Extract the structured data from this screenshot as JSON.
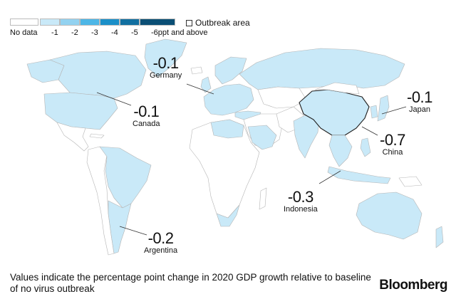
{
  "legend": {
    "no_data_label": "No data",
    "ramp": [
      {
        "label": "-1",
        "color": "#c9e9f8"
      },
      {
        "label": "-2",
        "color": "#93d2f0"
      },
      {
        "label": "-3",
        "color": "#4db6e6"
      },
      {
        "label": "-4",
        "color": "#1b8fc8"
      },
      {
        "label": "-5",
        "color": "#116fa0"
      },
      {
        "label": "-6ppt and above",
        "color": "#0b4f75"
      }
    ],
    "outbreak_label": "Outbreak area"
  },
  "colors": {
    "land_affected": "#c9e9f8",
    "land_nodata": "#ffffff",
    "border": "#b5b5b5"
  },
  "callouts": [
    {
      "key": "germany",
      "value": "-0.1",
      "name": "Germany"
    },
    {
      "key": "canada",
      "value": "-0.1",
      "name": "Canada"
    },
    {
      "key": "japan",
      "value": "-0.1",
      "name": "Japan"
    },
    {
      "key": "china",
      "value": "-0.7",
      "name": "China"
    },
    {
      "key": "indonesia",
      "value": "-0.3",
      "name": "Indonesia"
    },
    {
      "key": "argentina",
      "value": "-0.2",
      "name": "Argentina"
    }
  ],
  "caption": "Values indicate the percentage point change in 2020 GDP growth relative to baseline of no virus outbreak",
  "brand": "Bloomberg"
}
